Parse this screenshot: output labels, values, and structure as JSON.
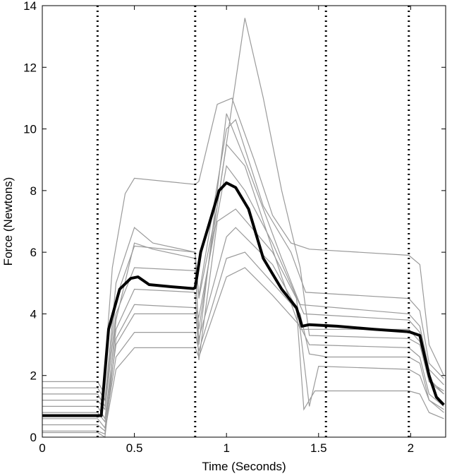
{
  "chart_data": {
    "type": "line",
    "title": "",
    "xlabel": "Time (Seconds)",
    "ylabel": "Force (Newtons)",
    "xlim": [
      0,
      2.19
    ],
    "ylim": [
      0,
      14
    ],
    "x_ticks": [
      0,
      0.5,
      1,
      1.5,
      2
    ],
    "x_tick_labels": [
      "0",
      "0.5",
      "1",
      "1.5",
      "2"
    ],
    "y_ticks": [
      0,
      2,
      4,
      6,
      8,
      10,
      12,
      14
    ],
    "y_tick_labels": [
      "0",
      "2",
      "4",
      "6",
      "8",
      "10",
      "12",
      "14"
    ],
    "grid": false,
    "legend": "none",
    "colors": {
      "trials": "#9a9a9a",
      "mean": "#000000",
      "markers": "#000000"
    },
    "event_markers_x": [
      0.3,
      0.83,
      1.54,
      1.99
    ],
    "series": [
      {
        "role": "trial",
        "values": [
          [
            0,
            1.8
          ],
          [
            0.3,
            1.8
          ],
          [
            0.33,
            1.5
          ],
          [
            0.38,
            5.5
          ],
          [
            0.45,
            7.9
          ],
          [
            0.5,
            8.4
          ],
          [
            0.83,
            8.2
          ],
          [
            0.85,
            8.3
          ],
          [
            0.95,
            10.8
          ],
          [
            1.03,
            11.0
          ],
          [
            1.15,
            9.0
          ],
          [
            1.25,
            7.2
          ],
          [
            1.35,
            6.3
          ],
          [
            1.45,
            6.1
          ],
          [
            1.99,
            5.9
          ],
          [
            2.05,
            5.6
          ],
          [
            2.1,
            3.0
          ],
          [
            2.18,
            2.0
          ]
        ]
      },
      {
        "role": "trial",
        "values": [
          [
            0,
            1.6
          ],
          [
            0.3,
            1.6
          ],
          [
            0.34,
            1.2
          ],
          [
            0.4,
            5.0
          ],
          [
            0.5,
            6.8
          ],
          [
            0.6,
            6.3
          ],
          [
            0.83,
            6.0
          ],
          [
            0.85,
            4.5
          ],
          [
            0.95,
            7.5
          ],
          [
            1.1,
            13.6
          ],
          [
            1.2,
            11.0
          ],
          [
            1.3,
            8.0
          ],
          [
            1.4,
            5.5
          ],
          [
            1.45,
            3.3
          ],
          [
            1.99,
            3.2
          ],
          [
            2.05,
            3.0
          ],
          [
            2.1,
            1.8
          ],
          [
            2.18,
            1.5
          ]
        ]
      },
      {
        "role": "trial",
        "values": [
          [
            0,
            1.4
          ],
          [
            0.3,
            1.4
          ],
          [
            0.34,
            1.0
          ],
          [
            0.4,
            4.5
          ],
          [
            0.5,
            6.2
          ],
          [
            0.83,
            6.0
          ],
          [
            0.85,
            3.0
          ],
          [
            1.0,
            10.5
          ],
          [
            1.1,
            9.0
          ],
          [
            1.3,
            5.8
          ],
          [
            1.4,
            4.3
          ],
          [
            1.99,
            4.0
          ],
          [
            2.05,
            3.6
          ],
          [
            2.1,
            2.2
          ],
          [
            2.18,
            1.7
          ]
        ]
      },
      {
        "role": "trial",
        "values": [
          [
            0,
            1.2
          ],
          [
            0.3,
            1.2
          ],
          [
            0.34,
            0.9
          ],
          [
            0.4,
            4.0
          ],
          [
            0.5,
            5.5
          ],
          [
            0.83,
            5.4
          ],
          [
            0.85,
            3.5
          ],
          [
            1.0,
            9.5
          ],
          [
            1.1,
            8.8
          ],
          [
            1.3,
            5.2
          ],
          [
            1.4,
            3.5
          ],
          [
            1.99,
            3.5
          ],
          [
            2.05,
            3.1
          ],
          [
            2.1,
            1.9
          ],
          [
            2.18,
            1.4
          ]
        ]
      },
      {
        "role": "trial",
        "values": [
          [
            0,
            1.0
          ],
          [
            0.3,
            1.0
          ],
          [
            0.34,
            0.6
          ],
          [
            0.4,
            3.5
          ],
          [
            0.5,
            4.8
          ],
          [
            0.83,
            4.7
          ],
          [
            0.85,
            2.5
          ],
          [
            0.95,
            7.0
          ],
          [
            1.05,
            7.4
          ],
          [
            1.25,
            6.0
          ],
          [
            1.38,
            4.5
          ],
          [
            1.45,
            1.0
          ],
          [
            1.5,
            2.3
          ],
          [
            1.99,
            2.2
          ],
          [
            2.05,
            2.0
          ],
          [
            2.1,
            1.2
          ],
          [
            2.18,
            0.9
          ]
        ]
      },
      {
        "role": "trial",
        "values": [
          [
            0,
            0.8
          ],
          [
            0.3,
            0.8
          ],
          [
            0.34,
            0.5
          ],
          [
            0.4,
            3.0
          ],
          [
            0.5,
            4.0
          ],
          [
            0.83,
            4.0
          ],
          [
            0.85,
            3.2
          ],
          [
            1.0,
            6.5
          ],
          [
            1.05,
            6.8
          ],
          [
            1.25,
            5.6
          ],
          [
            1.38,
            4.2
          ],
          [
            1.42,
            0.9
          ],
          [
            1.48,
            1.5
          ],
          [
            1.99,
            1.5
          ],
          [
            2.05,
            1.4
          ],
          [
            2.1,
            0.8
          ],
          [
            2.18,
            0.6
          ]
        ]
      },
      {
        "role": "trial",
        "values": [
          [
            0,
            0.6
          ],
          [
            0.3,
            0.6
          ],
          [
            0.34,
            0.3
          ],
          [
            0.4,
            2.6
          ],
          [
            0.5,
            3.4
          ],
          [
            0.83,
            3.4
          ],
          [
            0.85,
            2.8
          ],
          [
            1.0,
            5.8
          ],
          [
            1.1,
            6.0
          ],
          [
            1.25,
            5.0
          ],
          [
            1.4,
            4.0
          ],
          [
            1.45,
            2.7
          ],
          [
            1.55,
            2.6
          ],
          [
            1.99,
            2.6
          ],
          [
            2.05,
            2.4
          ],
          [
            2.1,
            1.2
          ],
          [
            2.18,
            0.8
          ]
        ]
      },
      {
        "role": "trial",
        "values": [
          [
            0,
            0.4
          ],
          [
            0.3,
            0.4
          ],
          [
            0.34,
            0.2
          ],
          [
            0.4,
            2.2
          ],
          [
            0.5,
            2.9
          ],
          [
            0.83,
            2.9
          ],
          [
            0.85,
            2.6
          ],
          [
            1.0,
            5.2
          ],
          [
            1.1,
            5.5
          ],
          [
            1.25,
            4.6
          ],
          [
            1.4,
            3.6
          ],
          [
            1.45,
            3.0
          ],
          [
            1.99,
            2.9
          ],
          [
            2.05,
            2.6
          ],
          [
            2.1,
            1.4
          ],
          [
            2.18,
            1.0
          ]
        ]
      },
      {
        "role": "trial",
        "values": [
          [
            0,
            0.2
          ],
          [
            0.3,
            0.2
          ],
          [
            0.34,
            0.1
          ],
          [
            0.4,
            3.8
          ],
          [
            0.5,
            6.3
          ],
          [
            0.6,
            6.1
          ],
          [
            0.83,
            5.8
          ],
          [
            0.85,
            4.6
          ],
          [
            1.0,
            10.0
          ],
          [
            1.05,
            10.3
          ],
          [
            1.2,
            7.5
          ],
          [
            1.35,
            6.0
          ],
          [
            1.43,
            4.7
          ],
          [
            1.99,
            4.5
          ],
          [
            2.05,
            4.1
          ],
          [
            2.1,
            2.4
          ],
          [
            2.18,
            1.9
          ]
        ]
      },
      {
        "role": "trial",
        "values": [
          [
            0,
            0.15
          ],
          [
            0.3,
            0.15
          ],
          [
            0.34,
            0.0
          ],
          [
            0.4,
            3.2
          ],
          [
            0.5,
            4.3
          ],
          [
            0.83,
            4.2
          ],
          [
            0.85,
            3.9
          ],
          [
            1.0,
            8.8
          ],
          [
            1.1,
            8.0
          ],
          [
            1.25,
            6.3
          ],
          [
            1.42,
            4.0
          ],
          [
            1.99,
            3.8
          ],
          [
            2.05,
            3.4
          ],
          [
            2.1,
            1.8
          ],
          [
            2.18,
            1.4
          ]
        ]
      },
      {
        "role": "mean",
        "values": [
          [
            0,
            0.7
          ],
          [
            0.3,
            0.7
          ],
          [
            0.32,
            0.7
          ],
          [
            0.36,
            3.5
          ],
          [
            0.42,
            4.8
          ],
          [
            0.48,
            5.15
          ],
          [
            0.52,
            5.2
          ],
          [
            0.58,
            4.95
          ],
          [
            0.7,
            4.88
          ],
          [
            0.82,
            4.82
          ],
          [
            0.83,
            4.85
          ],
          [
            0.86,
            6.0
          ],
          [
            0.9,
            6.8
          ],
          [
            0.96,
            8.0
          ],
          [
            1.0,
            8.25
          ],
          [
            1.05,
            8.1
          ],
          [
            1.12,
            7.4
          ],
          [
            1.2,
            5.8
          ],
          [
            1.3,
            4.8
          ],
          [
            1.38,
            4.2
          ],
          [
            1.41,
            3.6
          ],
          [
            1.45,
            3.65
          ],
          [
            1.6,
            3.6
          ],
          [
            1.8,
            3.5
          ],
          [
            1.99,
            3.42
          ],
          [
            2.05,
            3.3
          ],
          [
            2.1,
            2.0
          ],
          [
            2.14,
            1.3
          ],
          [
            2.18,
            1.05
          ]
        ]
      }
    ]
  }
}
